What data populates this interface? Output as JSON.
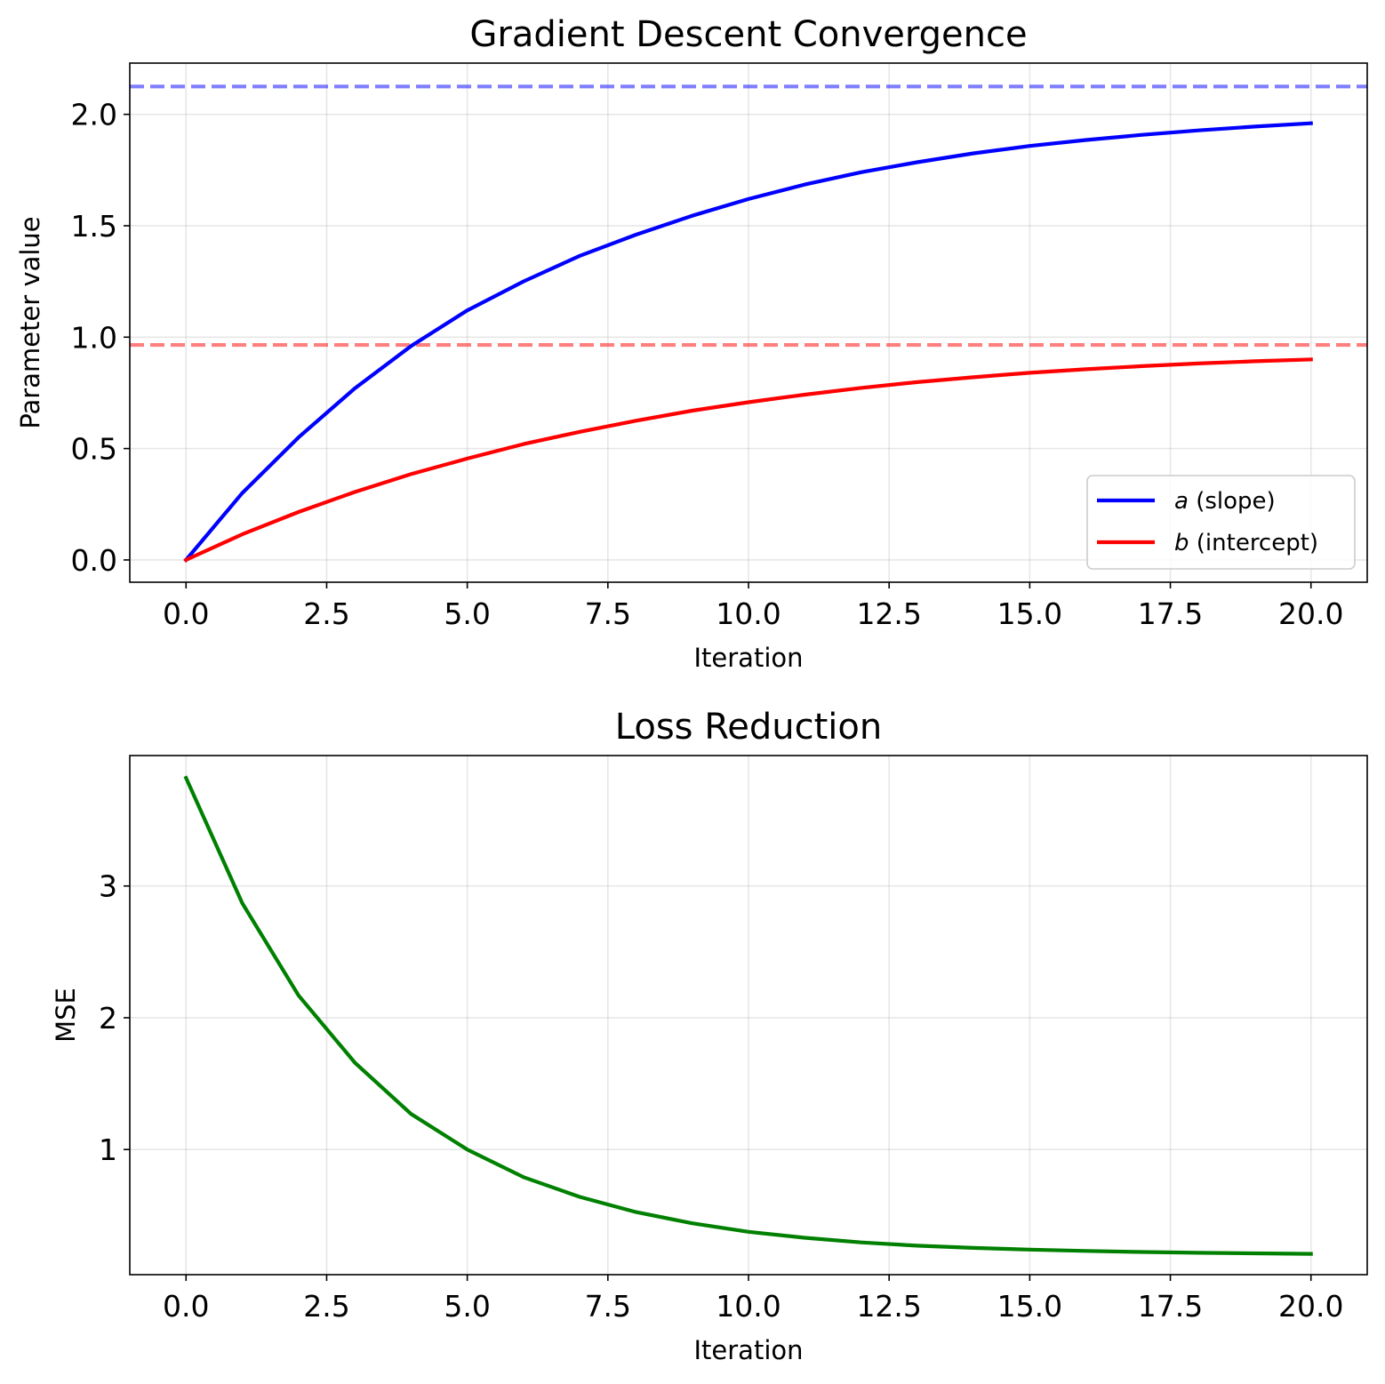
{
  "chart_data": [
    {
      "type": "line",
      "title": "Gradient Descent Convergence",
      "xlabel": "Iteration",
      "ylabel": "Parameter value",
      "xlim": [
        -1,
        21
      ],
      "ylim": [
        -0.1,
        2.23
      ],
      "xticks": [
        0.0,
        2.5,
        5.0,
        7.5,
        10.0,
        12.5,
        15.0,
        17.5,
        20.0
      ],
      "xtick_labels": [
        "0.0",
        "2.5",
        "5.0",
        "7.5",
        "10.0",
        "12.5",
        "15.0",
        "17.5",
        "20.0"
      ],
      "yticks": [
        0.0,
        0.5,
        1.0,
        1.5,
        2.0
      ],
      "ytick_labels": [
        "0.0",
        "0.5",
        "1.0",
        "1.5",
        "2.0"
      ],
      "grid": true,
      "legend_position": "lower-right",
      "x": [
        0,
        1,
        2,
        3,
        4,
        5,
        6,
        7,
        8,
        9,
        10,
        11,
        12,
        13,
        14,
        15,
        16,
        17,
        18,
        19,
        20
      ],
      "series": [
        {
          "name": "a (slope)",
          "name_var": "a",
          "name_rest": " (slope)",
          "color": "#0000ff",
          "values": [
            0.0,
            0.3,
            0.55,
            0.77,
            0.96,
            1.12,
            1.25,
            1.365,
            1.46,
            1.545,
            1.62,
            1.685,
            1.74,
            1.785,
            1.825,
            1.858,
            1.885,
            1.908,
            1.928,
            1.945,
            1.96
          ]
        },
        {
          "name": "b (intercept)",
          "name_var": "b",
          "name_rest": " (intercept)",
          "color": "#ff0000",
          "values": [
            0.0,
            0.115,
            0.215,
            0.305,
            0.385,
            0.455,
            0.52,
            0.575,
            0.625,
            0.67,
            0.708,
            0.742,
            0.772,
            0.798,
            0.82,
            0.84,
            0.856,
            0.87,
            0.882,
            0.892,
            0.9
          ]
        }
      ],
      "reference_lines": [
        {
          "y": 2.125,
          "color": "#0000ff",
          "style": "dashed",
          "alpha": 0.5
        },
        {
          "y": 0.965,
          "color": "#ff0000",
          "style": "dashed",
          "alpha": 0.5
        }
      ]
    },
    {
      "type": "line",
      "title": "Loss Reduction",
      "xlabel": "Iteration",
      "ylabel": "MSE",
      "xlim": [
        -1,
        21
      ],
      "ylim": [
        0.05,
        3.99
      ],
      "xticks": [
        0.0,
        2.5,
        5.0,
        7.5,
        10.0,
        12.5,
        15.0,
        17.5,
        20.0
      ],
      "xtick_labels": [
        "0.0",
        "2.5",
        "5.0",
        "7.5",
        "10.0",
        "12.5",
        "15.0",
        "17.5",
        "20.0"
      ],
      "yticks": [
        1,
        2,
        3
      ],
      "ytick_labels": [
        "1",
        "2",
        "3"
      ],
      "grid": true,
      "x": [
        0,
        1,
        2,
        3,
        4,
        5,
        6,
        7,
        8,
        9,
        10,
        11,
        12,
        13,
        14,
        15,
        16,
        17,
        18,
        19,
        20
      ],
      "series": [
        {
          "color": "#008000",
          "values": [
            3.82,
            2.87,
            2.17,
            1.66,
            1.27,
            1.0,
            0.79,
            0.64,
            0.525,
            0.44,
            0.375,
            0.33,
            0.295,
            0.27,
            0.253,
            0.24,
            0.23,
            0.222,
            0.216,
            0.212,
            0.208
          ]
        }
      ]
    }
  ]
}
